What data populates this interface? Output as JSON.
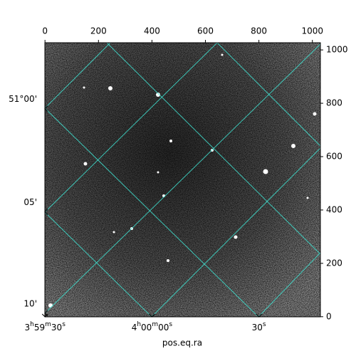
{
  "chart_data": {
    "type": "image",
    "xlabel": "pos.eq.ra",
    "xlim": [
      -0.5,
      1030
    ],
    "ylim": [
      -0.5,
      1027
    ],
    "x2ticks": [
      0,
      200,
      400,
      600,
      800,
      1000
    ],
    "y2ticks": [
      0,
      200,
      400,
      600,
      800,
      1000
    ],
    "ra_ticks": [
      {
        "value": 0,
        "label": "3h59m30s"
      },
      {
        "value": 400,
        "label": "4h00m00s"
      },
      {
        "value": 800,
        "label": "30s"
      }
    ],
    "dec_ticks": [
      {
        "value": 13,
        "label": "10'"
      },
      {
        "value": 393,
        "label": "05'"
      },
      {
        "value": 780,
        "label": "51°00'"
      }
    ]
  }
}
